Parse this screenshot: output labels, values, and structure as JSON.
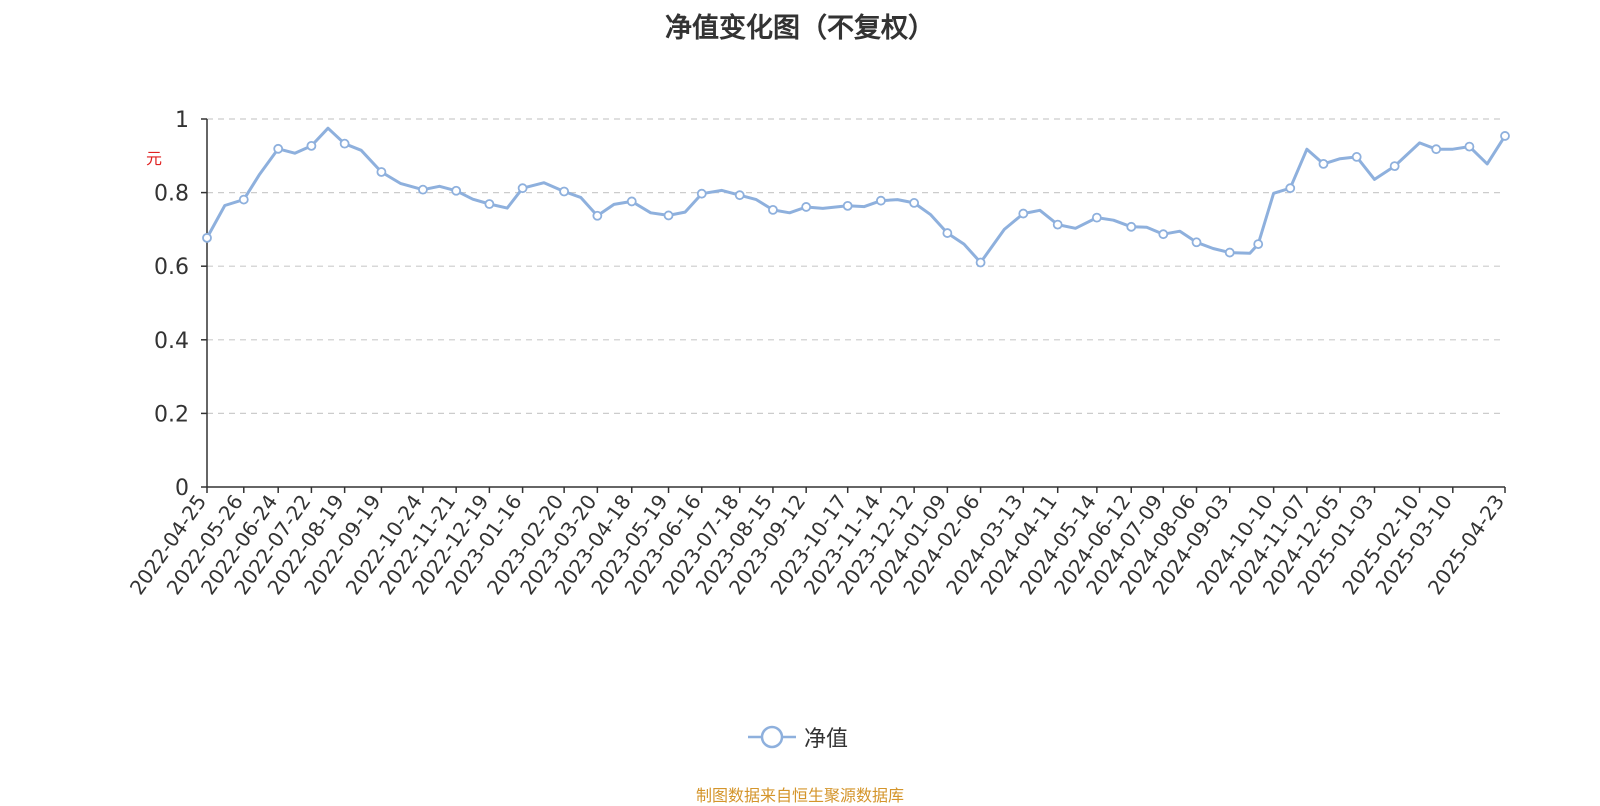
{
  "chart_data": {
    "type": "line",
    "title": "净值变化图（不复权）",
    "ylabel": "元",
    "ylim": [
      0,
      1
    ],
    "yticks": [
      "0",
      "0.2",
      "0.4",
      "0.6",
      "0.8",
      "1"
    ],
    "grid": true,
    "legend_position": "bottom-center",
    "x_tick_labels": [
      "2022-04-25",
      "2022-05-26",
      "2022-06-24",
      "2022-07-22",
      "2022-08-19",
      "2022-09-19",
      "2022-10-24",
      "2022-11-21",
      "2022-12-19",
      "2023-01-16",
      "2023-02-20",
      "2023-03-20",
      "2023-04-18",
      "2023-05-19",
      "2023-06-16",
      "2023-07-18",
      "2023-08-15",
      "2023-09-12",
      "2023-10-17",
      "2023-11-14",
      "2023-12-12",
      "2024-01-09",
      "2024-02-06",
      "2024-03-13",
      "2024-04-11",
      "2024-05-14",
      "2024-06-12",
      "2024-07-09",
      "2024-08-06",
      "2024-09-03",
      "2024-10-10",
      "2024-11-07",
      "2024-12-05",
      "2025-01-03",
      "2025-02-10",
      "2025-03-10",
      "2025-04-23"
    ],
    "series": [
      {
        "name": "净值",
        "color": "#8eb0dd",
        "x": [
          "2022-04-25",
          "2022-05-10",
          "2022-05-26",
          "2022-06-08",
          "2022-06-24",
          "2022-07-08",
          "2022-07-22",
          "2022-08-05",
          "2022-08-19",
          "2022-09-02",
          "2022-09-19",
          "2022-10-05",
          "2022-10-24",
          "2022-11-07",
          "2022-11-21",
          "2022-12-05",
          "2022-12-19",
          "2023-01-03",
          "2023-01-16",
          "2023-02-03",
          "2023-02-20",
          "2023-03-06",
          "2023-03-20",
          "2023-04-03",
          "2023-04-18",
          "2023-05-04",
          "2023-05-19",
          "2023-06-02",
          "2023-06-16",
          "2023-07-03",
          "2023-07-18",
          "2023-08-01",
          "2023-08-15",
          "2023-08-29",
          "2023-09-12",
          "2023-09-26",
          "2023-10-17",
          "2023-10-31",
          "2023-11-14",
          "2023-11-28",
          "2023-12-12",
          "2023-12-26",
          "2024-01-09",
          "2024-01-23",
          "2024-02-06",
          "2024-02-26",
          "2024-03-13",
          "2024-03-27",
          "2024-04-11",
          "2024-04-26",
          "2024-05-14",
          "2024-05-28",
          "2024-06-12",
          "2024-06-25",
          "2024-07-09",
          "2024-07-23",
          "2024-08-06",
          "2024-08-20",
          "2024-09-03",
          "2024-09-20",
          "2024-09-27",
          "2024-10-10",
          "2024-10-24",
          "2024-11-07",
          "2024-11-21",
          "2024-12-05",
          "2024-12-19",
          "2025-01-03",
          "2025-01-20",
          "2025-02-10",
          "2025-02-24",
          "2025-03-10",
          "2025-03-24",
          "2025-04-08",
          "2025-04-23"
        ],
        "values": [
          0.677,
          0.765,
          0.781,
          0.848,
          0.919,
          0.907,
          0.927,
          0.975,
          0.933,
          0.915,
          0.856,
          0.825,
          0.808,
          0.817,
          0.805,
          0.782,
          0.769,
          0.758,
          0.812,
          0.827,
          0.803,
          0.787,
          0.737,
          0.768,
          0.776,
          0.745,
          0.738,
          0.747,
          0.797,
          0.806,
          0.793,
          0.781,
          0.753,
          0.745,
          0.761,
          0.757,
          0.764,
          0.762,
          0.778,
          0.781,
          0.772,
          0.74,
          0.69,
          0.66,
          0.61,
          0.7,
          0.743,
          0.752,
          0.713,
          0.703,
          0.732,
          0.725,
          0.707,
          0.706,
          0.687,
          0.695,
          0.665,
          0.648,
          0.637,
          0.635,
          0.66,
          0.798,
          0.812,
          0.918,
          0.878,
          0.892,
          0.897,
          0.836,
          0.872,
          0.935,
          0.918,
          0.918,
          0.925,
          0.878,
          0.954
        ]
      }
    ]
  },
  "legend": {
    "label": "净值"
  },
  "source_note": "制图数据来自恒生聚源数据库"
}
